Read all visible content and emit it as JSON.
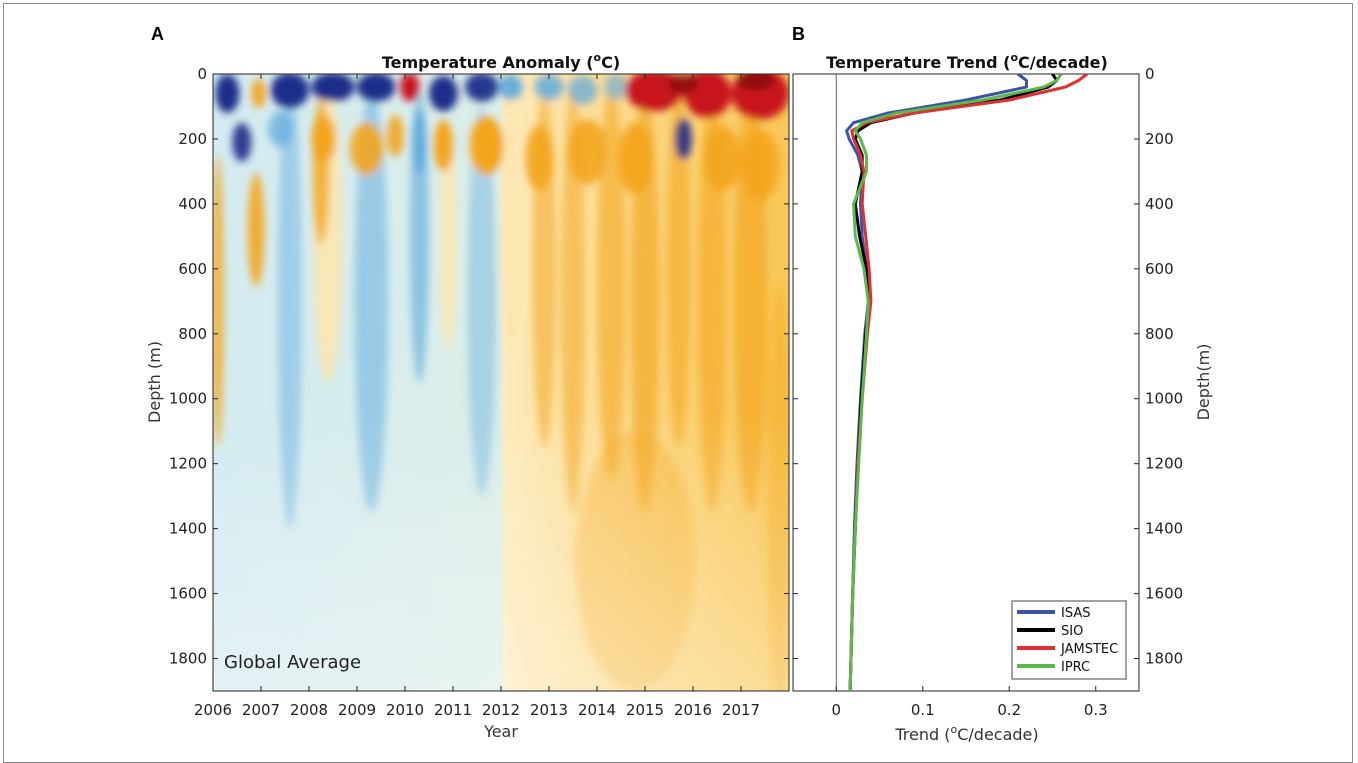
{
  "chart_data": [
    {
      "panel_label": "A",
      "type": "heatmap",
      "title": "Temperature Anomaly (",
      "title_sup": "o",
      "title_end": "C)",
      "xlabel": "Year",
      "ylabel": "Depth (m)",
      "annotation": "Global Average",
      "xlim": [
        2006,
        2018
      ],
      "ylim": [
        0,
        1900
      ],
      "x_ticks": [
        2006,
        2007,
        2008,
        2009,
        2010,
        2011,
        2012,
        2013,
        2014,
        2015,
        2016,
        2017
      ],
      "y_ticks": [
        0,
        200,
        400,
        600,
        800,
        1000,
        1200,
        1400,
        1600,
        1800
      ],
      "colors": {
        "cold_strong": "#1f2f8a",
        "cold": "#5aa7dd",
        "cold_light": "#cfe6f2",
        "neutral": "#eef4ec",
        "warm_light": "#fde7b0",
        "warm": "#f3a51c",
        "warm_strong": "#c8181d"
      },
      "warm_shift_year": 2012.1
    },
    {
      "panel_label": "B",
      "type": "line",
      "title": "Temperature Trend (",
      "title_sup": "o",
      "title_end": "C/decade)",
      "xlabel_pre": "Trend (",
      "xlabel_sup": "o",
      "xlabel_end": "C/decade)",
      "ylabel": "Depth(m)",
      "xlim": [
        -0.05,
        0.35
      ],
      "ylim": [
        0,
        1900
      ],
      "x_ticks": [
        0,
        0.1,
        0.2,
        0.3
      ],
      "y_ticks": [
        0,
        200,
        400,
        600,
        800,
        1000,
        1200,
        1400,
        1600,
        1800
      ],
      "legend_position": "bottom-right",
      "series": [
        {
          "name": "ISAS",
          "color": "#3a55a8",
          "depth": [
            0,
            20,
            40,
            80,
            120,
            150,
            175,
            200,
            250,
            300,
            400,
            500,
            600,
            700,
            800,
            1000,
            1200,
            1400,
            1600,
            1800,
            1900
          ],
          "values": [
            0.21,
            0.22,
            0.22,
            0.15,
            0.06,
            0.02,
            0.012,
            0.015,
            0.025,
            0.03,
            0.028,
            0.03,
            0.035,
            0.037,
            0.033,
            0.028,
            0.024,
            0.021,
            0.019,
            0.017,
            0.016
          ]
        },
        {
          "name": "SIO",
          "color": "#000000",
          "depth": [
            0,
            20,
            40,
            80,
            120,
            150,
            175,
            200,
            250,
            300,
            400,
            500,
            600,
            700,
            800,
            1000,
            1200,
            1400,
            1600,
            1800,
            1900
          ],
          "values": [
            0.25,
            0.255,
            0.245,
            0.19,
            0.09,
            0.04,
            0.025,
            0.022,
            0.03,
            0.03,
            0.022,
            0.027,
            0.035,
            0.038,
            0.034,
            0.029,
            0.025,
            0.022,
            0.019,
            0.017,
            0.016
          ]
        },
        {
          "name": "JAMSTEC",
          "color": "#e03030",
          "depth": [
            0,
            20,
            40,
            80,
            120,
            150,
            175,
            200,
            250,
            300,
            400,
            500,
            600,
            700,
            800,
            1000,
            1200,
            1400,
            1600,
            1800,
            1900
          ],
          "values": [
            0.29,
            0.28,
            0.265,
            0.2,
            0.09,
            0.035,
            0.018,
            0.02,
            0.028,
            0.032,
            0.03,
            0.034,
            0.038,
            0.04,
            0.036,
            0.03,
            0.025,
            0.022,
            0.019,
            0.017,
            0.016
          ]
        },
        {
          "name": "IPRC",
          "color": "#5bb84a",
          "depth": [
            0,
            20,
            40,
            80,
            120,
            150,
            175,
            200,
            250,
            300,
            400,
            500,
            600,
            700,
            800,
            1000,
            1200,
            1400,
            1600,
            1800,
            1900
          ],
          "values": [
            0.26,
            0.255,
            0.24,
            0.17,
            0.07,
            0.03,
            0.022,
            0.028,
            0.035,
            0.035,
            0.02,
            0.022,
            0.032,
            0.037,
            0.035,
            0.03,
            0.026,
            0.022,
            0.019,
            0.017,
            0.016
          ]
        }
      ]
    }
  ]
}
